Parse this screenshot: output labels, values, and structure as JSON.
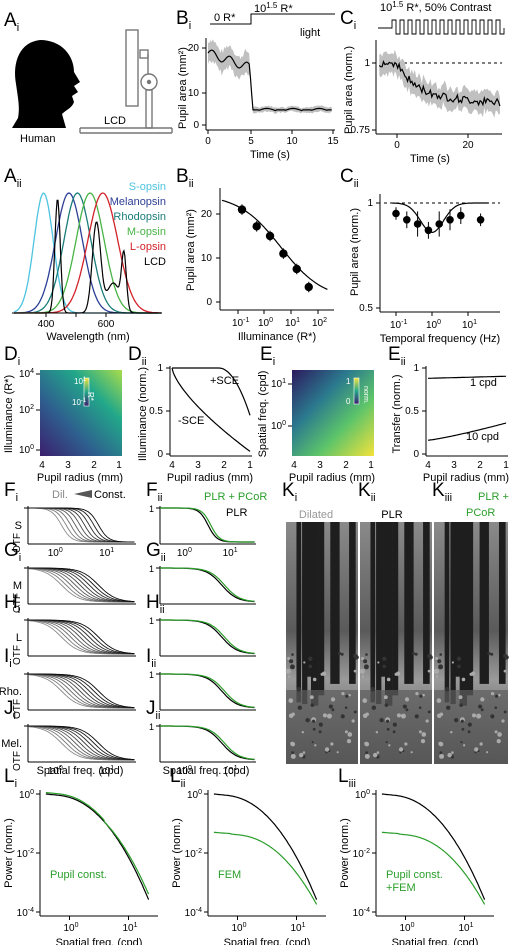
{
  "panels": {
    "A": {
      "letter": "A",
      "sub_i": "i",
      "sub_ii": "ii"
    },
    "B": {
      "letter": "B",
      "sub_i": "i",
      "sub_ii": "ii"
    },
    "C": {
      "letter": "C",
      "sub_i": "i",
      "sub_ii": "ii"
    },
    "D": {
      "letter": "D",
      "sub_i": "i",
      "sub_ii": "ii"
    },
    "E": {
      "letter": "E",
      "sub_i": "i",
      "sub_ii": "ii"
    },
    "F": {
      "letter": "F",
      "sub_i": "i",
      "sub_ii": "ii"
    },
    "G": {
      "letter": "G",
      "sub_i": "i",
      "sub_ii": "ii"
    },
    "H": {
      "letter": "H",
      "sub_i": "i",
      "sub_ii": "ii"
    },
    "I": {
      "letter": "I",
      "sub_i": "i",
      "sub_ii": "ii"
    },
    "J": {
      "letter": "J",
      "sub_i": "i",
      "sub_ii": "ii"
    },
    "K": {
      "letter": "K",
      "sub_i": "i",
      "sub_ii": "ii",
      "sub_iii": "iii"
    },
    "L": {
      "letter": "L",
      "sub_i": "i",
      "sub_ii": "ii",
      "sub_iii": "iii"
    }
  },
  "ai": {
    "human_label": "Human",
    "lcd_label": "LCD"
  },
  "aii": {
    "legend": [
      "S-opsin",
      "Melanopsin",
      "Rhodopsin",
      "M-opsin",
      "L-opsin",
      "LCD"
    ],
    "legend_colors": [
      "#4ec3e0",
      "#2c3f96",
      "#1a7d7a",
      "#49b447",
      "#d2232a",
      "#000000"
    ],
    "xlabel": "Wavelength (nm)",
    "xticks": [
      "400",
      "500",
      "600"
    ]
  },
  "bi": {
    "stim_dark": "0 R*",
    "stim_light_base": "10",
    "stim_light_exp": "1.5",
    "stim_light_suffix": " R*",
    "stim_label": "light",
    "ylabel": "Pupil area (mm²)",
    "xlabel": "Time (s)",
    "xticks": [
      "0",
      "5",
      "10",
      "15"
    ],
    "yticks": [
      "0",
      "10",
      "20"
    ]
  },
  "ci": {
    "stim_base": "10",
    "stim_exp": "1.5",
    "stim_suffix": " R*, 50% Contrast",
    "ylabel": "Pupil area (norm.)",
    "xlabel": "Time (s)",
    "xticks": [
      "0",
      "20"
    ],
    "yticks": [
      "1",
      "0.75"
    ]
  },
  "bii": {
    "ylabel": "Pupil area (mm²)",
    "xlabel": "Illuminance (R*)",
    "yticks": [
      "0",
      "10",
      "20"
    ],
    "xtick_exps": [
      "-1",
      "0",
      "1",
      "2"
    ]
  },
  "cii": {
    "ylabel": "Pupil area (norm.)",
    "xlabel": "Temporal frequency (Hz)",
    "yticks": [
      "1",
      "0.5"
    ],
    "xtick_exps": [
      "-1",
      "0",
      "1"
    ]
  },
  "di": {
    "ylabel": "Illuminance (R*)",
    "xlabel": "Pupil radius (mm)",
    "xticks": [
      "4",
      "3",
      "2",
      "1"
    ],
    "ytick_exps": [
      "0",
      "2",
      "4"
    ],
    "cbar_exp_top": "1",
    "cbar_exp_bot": "-1",
    "cbar_unit": "R*"
  },
  "dii": {
    "ylabel": "Illuminance (norm.)",
    "xlabel": "Pupil radius (mm)",
    "xticks": [
      "4",
      "3",
      "2",
      "1"
    ],
    "yticks": [
      "1",
      "0.5",
      "0"
    ],
    "sce_plus": "+SCE",
    "sce_minus": "-SCE"
  },
  "ei": {
    "ylabel": "Spatial freq. (cpd)",
    "xlabel": "Pupil radius (mm)",
    "xticks": [
      "4",
      "3",
      "2",
      "1"
    ],
    "ytick_exps": [
      "0",
      "1"
    ],
    "cbar_top": "1",
    "cbar_bot": "0",
    "cbar_unit": "norm."
  },
  "eii": {
    "ylabel": "Transfer (norm.)",
    "xlabel": "Pupil radius (mm)",
    "xticks": [
      "4",
      "3",
      "2",
      "1"
    ],
    "yticks": [
      "1",
      "0.5",
      "0"
    ],
    "label_1": "1 cpd",
    "label_10": "10 cpd"
  },
  "f_col": {
    "legend_dil": "Dil.",
    "legend_const": "Const.",
    "rows": [
      "S",
      "M",
      "L",
      "Rho.",
      "Mel."
    ],
    "ylabel": "OTF",
    "xlabel": "Spatial freq. (cpd)",
    "xtick_exps": [
      "0",
      "1"
    ]
  },
  "fii_col": {
    "legend_green": "PLR + PCoR",
    "legend_black": "PLR",
    "xlabel": "Spatial freq. (cpd)",
    "xtick_exps": [
      "0",
      "1"
    ]
  },
  "k": {
    "labels": [
      "Dilated",
      "PLR",
      "PLR +",
      "PCoR"
    ],
    "label_colors": [
      "#999999",
      "#000000",
      "#2a9d2a"
    ]
  },
  "l": {
    "ylabel": "Power (norm.)",
    "xlabel": "Spatial freq. (cpd)",
    "ytick_exps": [
      "0",
      "-2",
      "-4"
    ],
    "xtick_exps": [
      "0",
      "1"
    ],
    "labels": [
      "Pupil const.",
      "FEM",
      "Pupil const.",
      "+FEM"
    ]
  },
  "colors": {
    "green": "#2a9d2a",
    "gray_band": "#c0c0c0"
  }
}
